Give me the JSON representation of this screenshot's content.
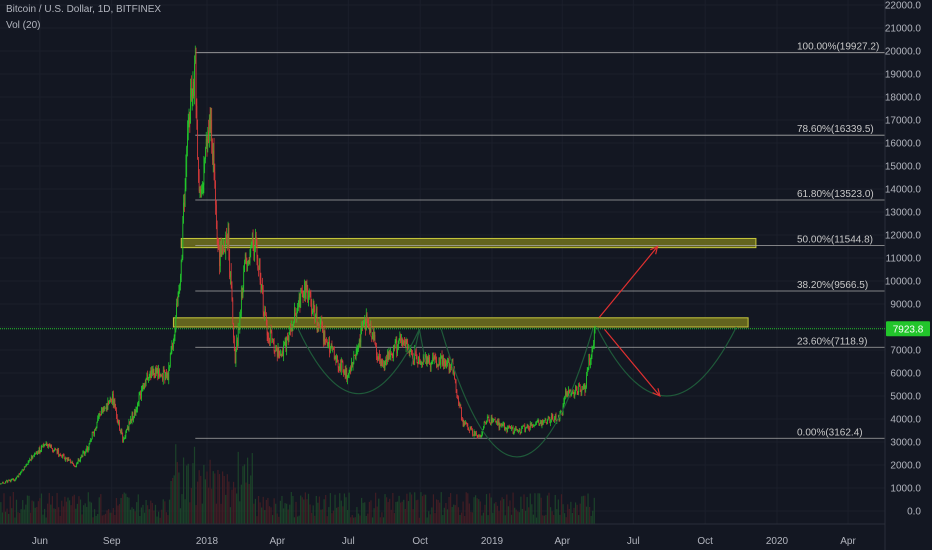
{
  "header": {
    "symbol": "Bitcoin / U.S. Dollar, 1D, BITFINEX",
    "volume": "Vol (20)"
  },
  "colors": {
    "background": "#131722",
    "up": "#22c52b",
    "down": "#d63a3a",
    "fib_line": "#a9a9a9",
    "zone_fill": "#7a7a1e",
    "zone_border": "#c8c83c",
    "projection": "#1f5a3a",
    "arrow": "#e03030",
    "price_tag": "#22c52b"
  },
  "chart_data": {
    "type": "candlestick",
    "title": "Bitcoin / U.S. Dollar, 1D, BITFINEX",
    "ylim": [
      -1000,
      22500
    ],
    "y_ticks": [
      "0.0",
      "1000.0",
      "2000.0",
      "3000.0",
      "4000.0",
      "5000.0",
      "6000.0",
      "7000.0",
      "8000.0",
      "9000.0",
      "10000.0",
      "11000.0",
      "12000.0",
      "13000.0",
      "14000.0",
      "15000.0",
      "16000.0",
      "17000.0",
      "18000.0",
      "19000.0",
      "20000.0",
      "21000.0",
      "22000.0"
    ],
    "x_ticks": [
      {
        "label": "Jun",
        "date": "2017-06-01"
      },
      {
        "label": "Sep",
        "date": "2017-09-01"
      },
      {
        "label": "2018",
        "date": "2018-01-01"
      },
      {
        "label": "Apr",
        "date": "2018-04-01"
      },
      {
        "label": "Jul",
        "date": "2018-07-01"
      },
      {
        "label": "Oct",
        "date": "2018-10-01"
      },
      {
        "label": "2019",
        "date": "2019-01-01"
      },
      {
        "label": "Apr",
        "date": "2019-04-01"
      },
      {
        "label": "Jul",
        "date": "2019-07-01"
      },
      {
        "label": "Oct",
        "date": "2019-10-01"
      },
      {
        "label": "2020",
        "date": "2020-01-01"
      },
      {
        "label": "Apr",
        "date": "2020-04-01"
      }
    ],
    "last_price": "7923.8",
    "last_value": 7923.8,
    "price_path": [
      [
        "2017-04-02",
        1100
      ],
      [
        "2017-05-01",
        1400
      ],
      [
        "2017-05-25",
        2500
      ],
      [
        "2017-06-11",
        2900
      ],
      [
        "2017-07-16",
        1950
      ],
      [
        "2017-08-01",
        2750
      ],
      [
        "2017-08-18",
        4300
      ],
      [
        "2017-09-02",
        4900
      ],
      [
        "2017-09-15",
        3100
      ],
      [
        "2017-10-01",
        4400
      ],
      [
        "2017-10-20",
        6000
      ],
      [
        "2017-11-12",
        5900
      ],
      [
        "2017-11-28",
        9900
      ],
      [
        "2017-12-07",
        16500
      ],
      [
        "2017-12-17",
        19500
      ],
      [
        "2017-12-22",
        13500
      ],
      [
        "2018-01-06",
        17000
      ],
      [
        "2018-01-16",
        11000
      ],
      [
        "2018-01-28",
        11800
      ],
      [
        "2018-02-06",
        6500
      ],
      [
        "2018-02-20",
        11200
      ],
      [
        "2018-03-05",
        11500
      ],
      [
        "2018-03-18",
        7900
      ],
      [
        "2018-04-06",
        6600
      ],
      [
        "2018-05-05",
        9800
      ],
      [
        "2018-06-01",
        7500
      ],
      [
        "2018-06-29",
        5900
      ],
      [
        "2018-07-25",
        8300
      ],
      [
        "2018-08-14",
        6200
      ],
      [
        "2018-09-05",
        7400
      ],
      [
        "2018-10-01",
        6600
      ],
      [
        "2018-11-10",
        6400
      ],
      [
        "2018-11-25",
        3800
      ],
      [
        "2018-12-15",
        3200
      ],
      [
        "2018-12-25",
        4000
      ],
      [
        "2019-01-31",
        3450
      ],
      [
        "2019-03-10",
        3900
      ],
      [
        "2019-04-01",
        4200
      ],
      [
        "2019-04-05",
        5100
      ],
      [
        "2019-04-30",
        5350
      ],
      [
        "2019-05-13",
        7950
      ]
    ],
    "fib_levels": [
      {
        "label": "100.00%(19927.2)",
        "value": 19927.2
      },
      {
        "label": "78.60%(16339.5)",
        "value": 16339.5
      },
      {
        "label": "61.80%(13523.0)",
        "value": 13523.0
      },
      {
        "label": "50.00%(11544.8)",
        "value": 11544.8
      },
      {
        "label": "38.20%(9566.5)",
        "value": 9566.5
      },
      {
        "label": "23.60%(7118.9)",
        "value": 7118.9
      },
      {
        "label": "0.00%(3162.4)",
        "value": 3162.4
      }
    ],
    "fib_start": "2017-12-17",
    "zones": [
      {
        "from": "2017-11-29",
        "to": "2019-12-05",
        "low": 11450,
        "high": 11850
      },
      {
        "from": "2017-11-19",
        "to": "2019-11-25",
        "low": 8000,
        "high": 8400
      }
    ],
    "projections": [
      {
        "name": "arc-2018",
        "from": "2018-04-28",
        "to": "2018-09-30",
        "lowest": 5100
      },
      {
        "name": "arc-2019-bottom",
        "from": "2018-10-28",
        "to": "2019-05-10",
        "lowest": 2350
      },
      {
        "name": "arc-2019-forecast",
        "from": "2019-05-15",
        "to": "2019-11-10",
        "lowest": 5000
      }
    ],
    "arrows": [
      {
        "from": [
          "2019-05-18",
          8400
        ],
        "to": [
          "2019-08-01",
          11500
        ]
      },
      {
        "from": [
          "2019-05-25",
          7900
        ],
        "to": [
          "2019-08-04",
          5000
        ]
      }
    ]
  }
}
